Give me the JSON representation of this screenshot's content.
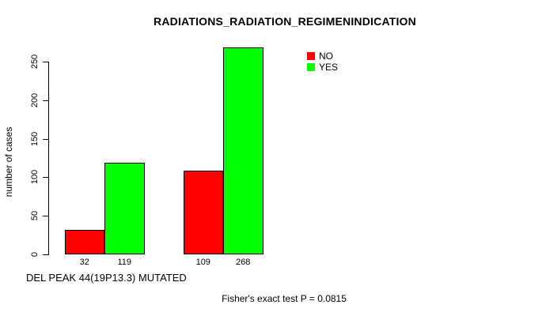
{
  "chart_data": {
    "type": "bar",
    "title": "RADIATIONS_RADIATION_REGIMENINDICATION",
    "ylabel": "number of cases",
    "xlabel": "DEL PEAK 44(19P13.3) MUTATED",
    "annotation": "Fisher's exact test P = 0.0815",
    "yticks": [
      0,
      50,
      100,
      150,
      200,
      250
    ],
    "ylim": [
      0,
      270
    ],
    "grid": false,
    "legend_position": "top-right",
    "series": [
      {
        "name": "NO",
        "color": "#ff0000",
        "values": [
          32,
          109
        ]
      },
      {
        "name": "YES",
        "color": "#00ff00",
        "values": [
          119,
          268
        ]
      }
    ],
    "bar_value_labels": [
      "32",
      "119",
      "109",
      "268"
    ],
    "axis_color": "#000000",
    "background_color": "#ffffff"
  }
}
